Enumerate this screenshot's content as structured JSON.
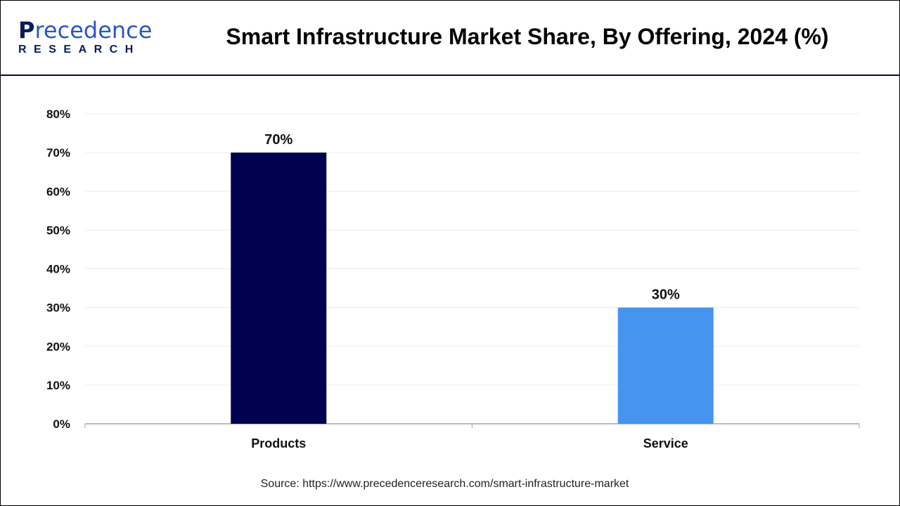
{
  "header": {
    "logo_text": "Precedence",
    "logo_subtext": "RESEARCH",
    "title": "Smart Infrastructure Market Share, By Offering, 2024 (%)"
  },
  "chart_data": {
    "type": "bar",
    "title": "Smart Infrastructure Market Share, By Offering, 2024 (%)",
    "categories": [
      "Products",
      "Service"
    ],
    "values": [
      70,
      30
    ],
    "data_labels": [
      "70%",
      "30%"
    ],
    "colors": [
      "#000250",
      "#4594f0"
    ],
    "xlabel": "",
    "ylabel": "",
    "ylim": [
      0,
      80
    ],
    "yticks": [
      "0%",
      "10%",
      "20%",
      "30%",
      "40%",
      "50%",
      "60%",
      "70%",
      "80%"
    ],
    "grid": true,
    "legend": "none"
  },
  "source": "Source: https://www.precedenceresearch.com/smart-infrastructure-market"
}
